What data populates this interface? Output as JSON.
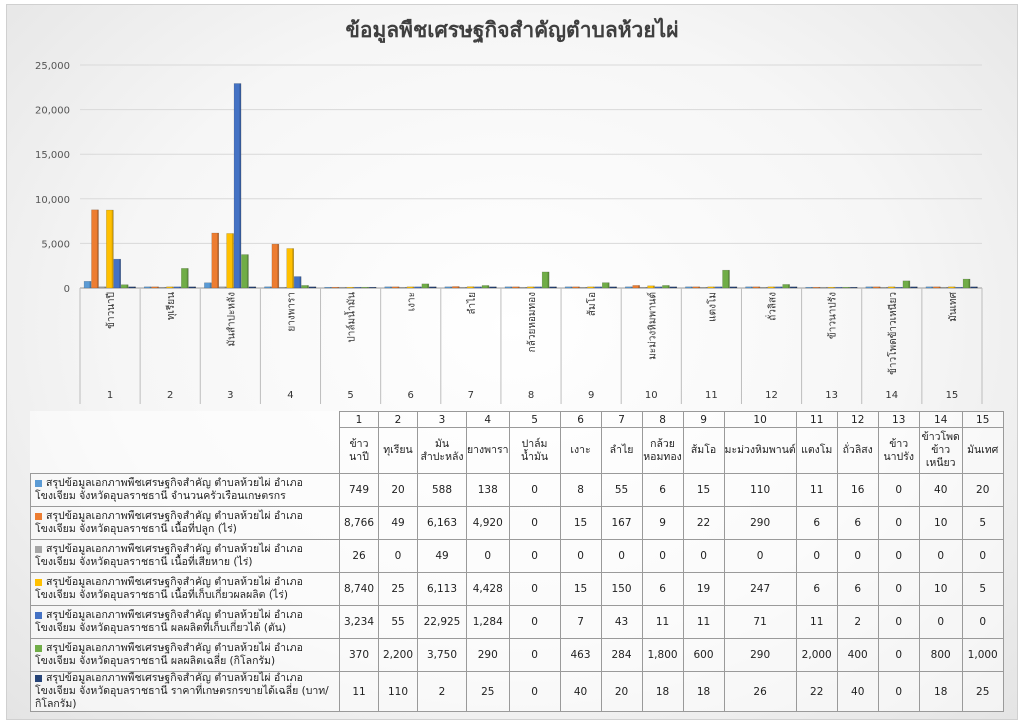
{
  "chart_data": {
    "type": "bar",
    "title": "ข้อมูลพืชเศรษฐกิจสำคัญตำบลห้วยไผ่",
    "categories": [
      "ข้าวนาปี",
      "ทุเรียน",
      "มันสำปะหลัง",
      "ยางพารา",
      "ปาล์มน้ำมัน",
      "เงาะ",
      "ลำไย",
      "กล้วยหอมทอง",
      "ส้มโอ",
      "มะม่วงหิมพานต์",
      "แตงโม",
      "ถั่วลิสง",
      "ข้าวนาปรัง",
      "ข้าวโพดข้าวเหนียว",
      "มันเทศ"
    ],
    "category_numbers": [
      "1",
      "2",
      "3",
      "4",
      "5",
      "6",
      "7",
      "8",
      "9",
      "10",
      "11",
      "12",
      "13",
      "14",
      "15"
    ],
    "table_header_labels": [
      "ข้าวนาปี",
      "ทุเรียน",
      "มันสำปะหลัง",
      "ยางพารา",
      "ปาล์มน้ำมัน",
      "เงาะ",
      "ลำไย",
      "กล้วยหอมทอง",
      "ส้มโอ",
      "มะม่วงหิมพานต์",
      "แตงโม",
      "ถั่วลิสง",
      "ข้าวนาปรัง",
      "ข้าวโพดข้าวเหนียว",
      "มันเทศ"
    ],
    "ylim": [
      0,
      25000
    ],
    "yticks": [
      "0",
      "5,000",
      "10,000",
      "15,000",
      "20,000",
      "25,000"
    ],
    "ytick_values": [
      0,
      5000,
      10000,
      15000,
      20000,
      25000
    ],
    "grid": true,
    "legend": "table",
    "series": [
      {
        "name": "สรุปข้อมูลเอกภาพพืชเศรษฐกิจสำคัญ ตำบลห้วยไผ่ อำเภอโขงเจียม จังหวัดอุบลราชธานี จำนวนครัวเรือนเกษตรกร",
        "color": "#5b9bd5",
        "values": [
          749,
          20,
          588,
          138,
          0,
          8,
          55,
          6,
          15,
          110,
          11,
          16,
          0,
          40,
          20
        ],
        "labels": [
          "749",
          "20",
          "588",
          "138",
          "0",
          "8",
          "55",
          "6",
          "15",
          "110",
          "11",
          "16",
          "0",
          "40",
          "20"
        ]
      },
      {
        "name": "สรุปข้อมูลเอกภาพพืชเศรษฐกิจสำคัญ ตำบลห้วยไผ่ อำเภอโขงเจียม จังหวัดอุบลราชธานี เนื้อที่ปลูก (ไร่)",
        "color": "#ed7d31",
        "values": [
          8766,
          49,
          6163,
          4920,
          0,
          15,
          167,
          9,
          22,
          290,
          6,
          6,
          0,
          10,
          5
        ],
        "labels": [
          "8,766",
          "49",
          "6,163",
          "4,920",
          "0",
          "15",
          "167",
          "9",
          "22",
          "290",
          "6",
          "6",
          "0",
          "10",
          "5"
        ]
      },
      {
        "name": "สรุปข้อมูลเอกภาพพืชเศรษฐกิจสำคัญ ตำบลห้วยไผ่ อำเภอโขงเจียม จังหวัดอุบลราชธานี เนื้อที่เสียหาย (ไร่)",
        "color": "#a5a5a5",
        "values": [
          26,
          0,
          49,
          0,
          0,
          0,
          0,
          0,
          0,
          0,
          0,
          0,
          0,
          0,
          0
        ],
        "labels": [
          "26",
          "0",
          "49",
          "0",
          "0",
          "0",
          "0",
          "0",
          "0",
          "0",
          "0",
          "0",
          "0",
          "0",
          "0"
        ]
      },
      {
        "name": "สรุปข้อมูลเอกภาพพืชเศรษฐกิจสำคัญ ตำบลห้วยไผ่ อำเภอโขงเจียม จังหวัดอุบลราชธานี เนื้อที่เก็บเกี่ยวผลผลิต (ไร่)",
        "color": "#ffc000",
        "values": [
          8740,
          25,
          6113,
          4428,
          0,
          15,
          150,
          6,
          19,
          247,
          6,
          6,
          0,
          10,
          5
        ],
        "labels": [
          "8,740",
          "25",
          "6,113",
          "4,428",
          "0",
          "15",
          "150",
          "6",
          "19",
          "247",
          "6",
          "6",
          "0",
          "10",
          "5"
        ]
      },
      {
        "name": "สรุปข้อมูลเอกภาพพืชเศรษฐกิจสำคัญ ตำบลห้วยไผ่ อำเภอโขงเจียม จังหวัดอุบลราชธานี ผลผลิตที่เก็บเกี่ยวได้ (ตัน)",
        "color": "#4472c4",
        "values": [
          3234,
          55,
          22925,
          1284,
          0,
          7,
          43,
          11,
          11,
          71,
          11,
          2,
          0,
          0,
          0
        ],
        "labels": [
          "3,234",
          "55",
          "22,925",
          "1,284",
          "0",
          "7",
          "43",
          "11",
          "11",
          "71",
          "11",
          "2",
          "0",
          "0",
          "0"
        ]
      },
      {
        "name": "สรุปข้อมูลเอกภาพพืชเศรษฐกิจสำคัญ ตำบลห้วยไผ่ อำเภอโขงเจียม จังหวัดอุบลราชธานี ผลผลิตเฉลี่ย (กิโลกรัม)",
        "color": "#70ad47",
        "values": [
          370,
          2200,
          3750,
          290,
          0,
          463,
          284,
          1800,
          600,
          290,
          2000,
          400,
          0,
          800,
          1000
        ],
        "labels": [
          "370",
          "2,200",
          "3,750",
          "290",
          "0",
          "463",
          "284",
          "1,800",
          "600",
          "290",
          "2,000",
          "400",
          "0",
          "800",
          "1,000"
        ]
      },
      {
        "name": "สรุปข้อมูลเอกภาพพืชเศรษฐกิจสำคัญ ตำบลห้วยไผ่ อำเภอโขงเจียม จังหวัดอุบลราชธานี ราคาที่เกษตรกรขายได้เฉลี่ย (บาท/กิโลกรัม)",
        "color": "#264478",
        "values": [
          11,
          110,
          2,
          25,
          0,
          40,
          20,
          18,
          18,
          26,
          22,
          40,
          0,
          18,
          25
        ],
        "labels": [
          "11",
          "110",
          "2",
          "25",
          "0",
          "40",
          "20",
          "18",
          "18",
          "26",
          "22",
          "40",
          "0",
          "18",
          "25"
        ]
      }
    ]
  }
}
